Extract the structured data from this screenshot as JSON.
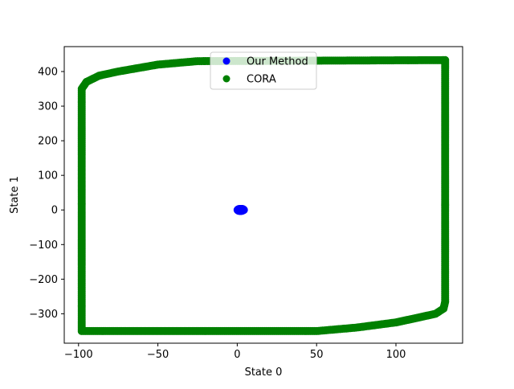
{
  "chart_data": {
    "type": "scatter",
    "title": "",
    "xlabel": "State 0",
    "ylabel": "State 1",
    "xlim": [
      -109,
      142
    ],
    "ylim": [
      -385,
      472
    ],
    "x_ticks": [
      -100,
      -50,
      0,
      50,
      100
    ],
    "x_tick_labels": [
      "−100",
      "−50",
      "0",
      "50",
      "100"
    ],
    "y_ticks": [
      -300,
      -200,
      -100,
      0,
      100,
      200,
      300,
      400
    ],
    "y_tick_labels": [
      "−300",
      "−200",
      "−100",
      "0",
      "100",
      "200",
      "300",
      "400"
    ],
    "grid": false,
    "legend_position": "upper center",
    "series": [
      {
        "name": "Our Method",
        "color": "#0000ff",
        "x": [
          0.5,
          1.0,
          1.5,
          2.0,
          2.5,
          3.0,
          3.5,
          4.0,
          3.5,
          3.0,
          2.5,
          2.0,
          1.5,
          1.0,
          0.5,
          0.2,
          4.2
        ],
        "y": [
          1.5,
          2.5,
          3.0,
          3.0,
          3.0,
          3.0,
          2.5,
          1.0,
          -1.5,
          -2.5,
          -3.0,
          -3.0,
          -3.0,
          -2.5,
          -1.5,
          0.0,
          0.0
        ]
      },
      {
        "name": "CORA",
        "color": "#008000",
        "vertices": [
          {
            "x": -98,
            "y": -350
          },
          {
            "x": 50,
            "y": -350
          },
          {
            "x": 75,
            "y": -340
          },
          {
            "x": 100,
            "y": -325
          },
          {
            "x": 115,
            "y": -310
          },
          {
            "x": 125,
            "y": -300
          },
          {
            "x": 130,
            "y": -285
          },
          {
            "x": 131,
            "y": -265
          },
          {
            "x": 131,
            "y": 433
          },
          {
            "x": -25,
            "y": 430
          },
          {
            "x": -50,
            "y": 420
          },
          {
            "x": -75,
            "y": 400
          },
          {
            "x": -87,
            "y": 388
          },
          {
            "x": -95,
            "y": 370
          },
          {
            "x": -98,
            "y": 350
          },
          {
            "x": -98,
            "y": -350
          }
        ]
      }
    ]
  }
}
